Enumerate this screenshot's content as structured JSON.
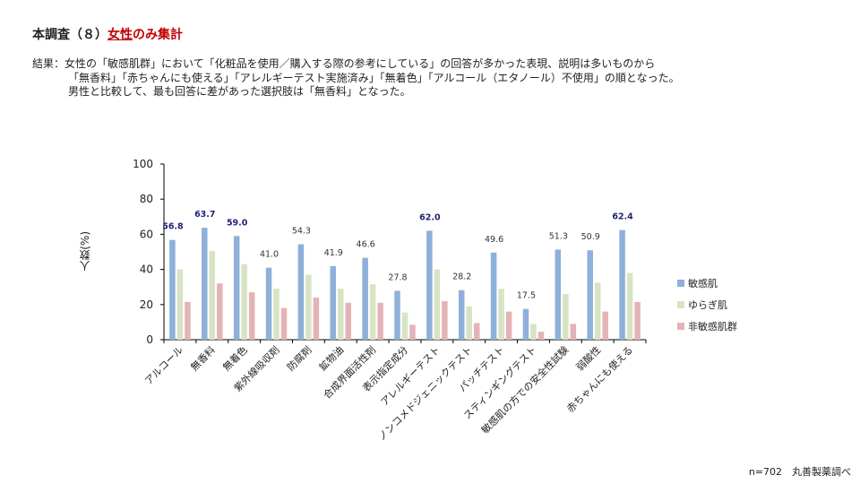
{
  "header": {
    "title_prefix": "本調査（８）",
    "title_highlight_underlined": "女性",
    "title_highlight_rest": "のみ集計"
  },
  "summary": {
    "line1": "結果：女性の「敏感肌群」において「化粧品を使用／購入する際の参考にしている」の回答が多かった表現、説明は多いものから",
    "line2": "「無香料」「赤ちゃんにも使える」「アレルギーテスト実施済み」「無着色」「アルコール（エタノール）不使用」の順となった。",
    "line3": "男性と比較して、最も回答に差があった選択肢は「無香料」となった。"
  },
  "footer": {
    "note": "n=702　丸善製薬調べ"
  },
  "colors": {
    "sensitive": "#8eb0da",
    "fluctuating": "#d8e3c3",
    "non_sensitive": "#e3b3b6",
    "highlight_label": "#1f1f7a",
    "normal_label": "#333333",
    "title_accent": "#c00000"
  },
  "chart_data": {
    "type": "bar",
    "title": "",
    "xlabel": "",
    "ylabel": "人数(%)",
    "ylim": [
      0,
      100
    ],
    "yticks": [
      0,
      20,
      40,
      60,
      80,
      100
    ],
    "grid": false,
    "legend_position": "right",
    "categories": [
      "アルコール",
      "無香料",
      "無着色",
      "紫外線吸収剤",
      "防腐剤",
      "鉱物油",
      "合成界面活性剤",
      "表示指定成分",
      "アレルギーテスト",
      "ノンコメドジェニックテスト",
      "パッチテスト",
      "スティンギングテスト",
      "敏感肌の方での安全性試験",
      "弱酸性",
      "赤ちゃんにも使える"
    ],
    "series": [
      {
        "name": "敏感肌",
        "values": [
          56.8,
          63.7,
          59.0,
          41.0,
          54.3,
          41.9,
          46.6,
          27.8,
          62.0,
          28.2,
          49.6,
          17.5,
          51.3,
          50.9,
          62.4
        ]
      },
      {
        "name": "ゆらぎ肌",
        "values": [
          40.0,
          50.5,
          43.0,
          29.0,
          37.0,
          29.0,
          31.5,
          15.5,
          40.0,
          19.0,
          29.0,
          9.0,
          26.0,
          32.5,
          38.0
        ]
      },
      {
        "name": "非敏感肌群",
        "values": [
          21.5,
          32.0,
          27.0,
          18.0,
          24.0,
          21.0,
          21.0,
          8.5,
          22.0,
          9.5,
          16.0,
          4.5,
          9.0,
          16.0,
          21.5
        ]
      }
    ],
    "data_labels": {
      "series": "敏感肌",
      "labels": [
        "56.8",
        "63.7",
        "59.0",
        "41.0",
        "54.3",
        "41.9",
        "46.6",
        "27.8",
        "62.0",
        "28.2",
        "49.6",
        "17.5",
        "51.3",
        "50.9",
        "62.4"
      ],
      "highlighted_top5": [
        "63.7",
        "62.4",
        "62.0",
        "59.0",
        "56.8"
      ]
    }
  }
}
